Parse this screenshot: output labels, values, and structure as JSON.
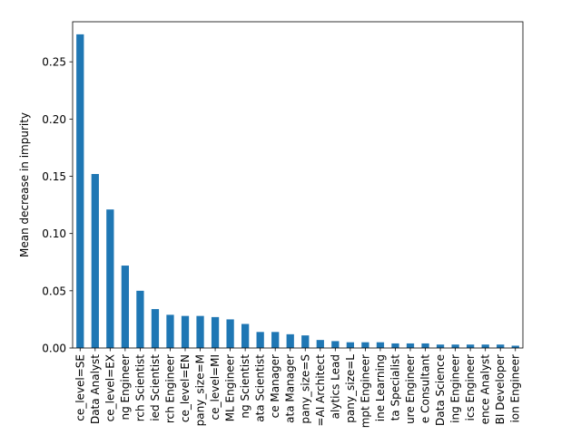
{
  "chart_data": {
    "type": "bar",
    "title": "",
    "xlabel": "",
    "ylabel": "Mean decrease in impurity",
    "ylim": [
      0,
      0.285
    ],
    "yticks": [
      "0.00",
      "0.05",
      "0.10",
      "0.15",
      "0.20",
      "0.25"
    ],
    "ytick_values": [
      0.0,
      0.05,
      0.1,
      0.15,
      0.2,
      0.25
    ],
    "grid": false,
    "bar_color": "#1f77b4",
    "categories": [
      "ce_level=SE",
      "Data Analyst",
      "ce_level=EX",
      "ng Engineer",
      "rch Scientist",
      "ied Scientist",
      "rch Engineer",
      "ce_level=EN",
      "pany_size=M",
      "ce_level=MI",
      "ML Engineer",
      "ng Scientist",
      "ata Scientist",
      "ce Manager",
      "ata Manager",
      "pany_size=S",
      "=AI Architect",
      "alytics Lead",
      "pany_size=L",
      "mpt Engineer",
      "ine Learning",
      "ta Specialist",
      "ure Engineer",
      "e Consultant",
      "Data Science",
      "ing Engineer",
      "ics Engineer",
      "ence Analyst",
      "BI Developer",
      "ion Engineer"
    ],
    "values": [
      0.274,
      0.152,
      0.121,
      0.072,
      0.05,
      0.034,
      0.029,
      0.028,
      0.028,
      0.027,
      0.025,
      0.021,
      0.014,
      0.014,
      0.012,
      0.011,
      0.007,
      0.006,
      0.005,
      0.005,
      0.005,
      0.004,
      0.004,
      0.004,
      0.003,
      0.003,
      0.003,
      0.003,
      0.003,
      0.002
    ]
  }
}
